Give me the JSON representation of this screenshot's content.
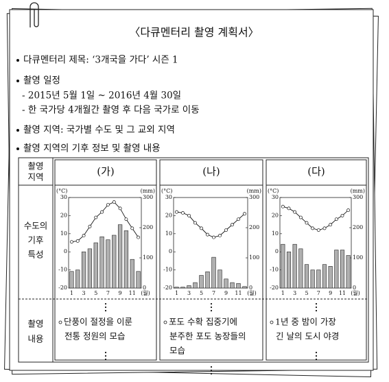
{
  "document": {
    "title": "〈다큐멘터리 촬영 계획서〉",
    "items": [
      "다큐멘터리 제목: ‘3개국을 가다’ 시즌 1",
      "촬영 일정",
      "촬영 지역: 국가별 수도 및 그 교외 지역",
      "촬영 지역의 기후 정보 및 촬영 내용"
    ],
    "schedule": [
      "- 2015년 5월 1일 ~ 2016년 4월 30일",
      "- 한 국가당 4개월간 촬영 후 다음 국가로 이동"
    ]
  },
  "table": {
    "row_headers": [
      [
        "촬영",
        "지역"
      ],
      [
        "수도의",
        "기후",
        "특성"
      ],
      [
        "촬영",
        "내용"
      ]
    ],
    "contents": [
      [
        "단풍이 절정을 이룬",
        "전통 정원의 모습"
      ],
      [
        "포도 수확 집중기에",
        "분주한 포도 농장들의",
        "모습"
      ],
      [
        "1년 중 밤이 가장",
        "긴 날의 도시 야경"
      ]
    ]
  },
  "chart_data": [
    {
      "type": "climograph",
      "title": "(가)",
      "ylabel": "(°C)",
      "y2label": "(mm)",
      "xlabel": "(월)",
      "categories": [
        1,
        null,
        3,
        null,
        5,
        null,
        7,
        null,
        9,
        null,
        11,
        null
      ],
      "ylim": [
        -20,
        30
      ],
      "yticks": [
        -20,
        -10,
        0,
        10,
        20,
        30
      ],
      "y2lim": [
        0,
        300
      ],
      "y2ticks": [
        0,
        100,
        200,
        300
      ],
      "series": [
        {
          "kind": "bar",
          "axis": "y2",
          "color": "#b0b0b0",
          "values": [
            55,
            60,
            120,
            130,
            150,
            170,
            160,
            175,
            210,
            190,
            95,
            55
          ]
        },
        {
          "kind": "line",
          "color": "#111111",
          "values": [
            5.5,
            6,
            9,
            14,
            19,
            22,
            26,
            27.5,
            24,
            18,
            13,
            8
          ]
        }
      ]
    },
    {
      "type": "climograph",
      "title": "(나)",
      "ylabel": "(°C)",
      "y2label": "(mm)",
      "xlabel": "(월)",
      "categories": [
        1,
        null,
        3,
        null,
        5,
        null,
        7,
        null,
        9,
        null,
        11,
        null
      ],
      "ylim": [
        -20,
        30
      ],
      "yticks": [
        -20,
        -10,
        0,
        10,
        20,
        30
      ],
      "y2lim": [
        0,
        300
      ],
      "y2ticks": [
        0,
        100,
        200,
        300
      ],
      "series": [
        {
          "kind": "bar",
          "axis": "y2",
          "color": "#b0b0b0",
          "values": [
            3,
            3,
            8,
            18,
            42,
            54,
            102,
            60,
            30,
            18,
            15,
            5
          ]
        },
        {
          "kind": "line",
          "color": "#111111",
          "values": [
            22,
            21.5,
            20,
            16,
            13,
            9.5,
            8,
            9,
            12,
            15,
            18,
            21
          ]
        }
      ]
    },
    {
      "type": "climograph",
      "title": "(다)",
      "ylabel": "(°C)",
      "y2label": "(mm)",
      "xlabel": "(월)",
      "categories": [
        1,
        null,
        3,
        null,
        5,
        null,
        7,
        null,
        9,
        null,
        11,
        null
      ],
      "ylim": [
        -20,
        30
      ],
      "yticks": [
        -20,
        -10,
        0,
        10,
        20,
        30
      ],
      "y2lim": [
        0,
        300
      ],
      "y2ticks": [
        0,
        100,
        200,
        300
      ],
      "series": [
        {
          "kind": "bar",
          "axis": "y2",
          "color": "#b0b0b0",
          "values": [
            145,
            120,
            145,
            130,
            78,
            60,
            60,
            78,
            72,
            126,
            126,
            108
          ]
        },
        {
          "kind": "line",
          "color": "#111111",
          "values": [
            25,
            24,
            22,
            19,
            16,
            13,
            12,
            13,
            15,
            18,
            20,
            23
          ]
        }
      ]
    }
  ]
}
